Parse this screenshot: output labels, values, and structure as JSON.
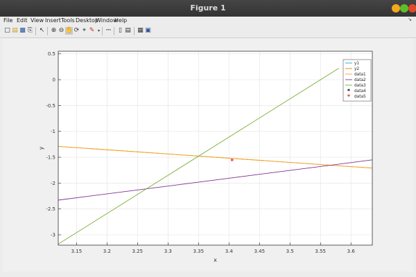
{
  "window": {
    "title": "Figure 1"
  },
  "menu": {
    "items": [
      {
        "label": "File"
      },
      {
        "label": "Edit"
      },
      {
        "label": "View"
      },
      {
        "label": "Insert"
      },
      {
        "label": "Tools"
      },
      {
        "label": "Desktop"
      },
      {
        "label": "Window"
      },
      {
        "label": "Help"
      }
    ]
  },
  "toolbar": {
    "buttons": [
      "new-figure",
      "open-file",
      "save",
      "print",
      "edit-plot",
      "zoom-in",
      "zoom-out",
      "pan",
      "rotate-3d",
      "data-cursor",
      "brush",
      "link-plot",
      "insert-colorbar",
      "insert-legend",
      "hide-plot-tools",
      "show-plot-tools"
    ]
  },
  "chart_data": {
    "type": "line",
    "xlabel": "x",
    "ylabel": "y",
    "xlim": [
      3.12,
      3.635
    ],
    "ylim": [
      -3.2,
      0.55
    ],
    "xticks": [
      "3.15",
      "3.2",
      "3.25",
      "3.3",
      "3.35",
      "3.4",
      "3.45",
      "3.5",
      "3.55",
      "3.6"
    ],
    "xtick_values": [
      3.15,
      3.2,
      3.25,
      3.3,
      3.35,
      3.4,
      3.45,
      3.5,
      3.55,
      3.6
    ],
    "yticks": [
      "0.5",
      "0",
      "-0.5",
      "-1",
      "-1.5",
      "-2",
      "-2.5",
      "-3"
    ],
    "ytick_values": [
      0.5,
      0,
      -0.5,
      -1,
      -1.5,
      -2,
      -2.5,
      -3
    ],
    "grid": true,
    "legend_position": "top-right",
    "series": [
      {
        "name": "y1",
        "color": "#1fa2d6",
        "kind": "line",
        "x": [],
        "y": []
      },
      {
        "name": "y2",
        "color": "#e87c00",
        "kind": "line",
        "x": [
          3.12,
          3.635
        ],
        "y": [
          -1.29,
          -1.71
        ]
      },
      {
        "name": "data1",
        "color": "#f1a52b",
        "kind": "line",
        "x": [
          3.12,
          3.635
        ],
        "y": [
          -1.29,
          -1.71
        ]
      },
      {
        "name": "data2",
        "color": "#7e2f8e",
        "kind": "line",
        "x": [
          3.12,
          3.635
        ],
        "y": [
          -2.33,
          -1.55
        ]
      },
      {
        "name": "data3",
        "color": "#77ac30",
        "kind": "line",
        "x": [
          3.12,
          3.58
        ],
        "y": [
          -3.18,
          0.22
        ]
      },
      {
        "name": "data4",
        "color": "#000000",
        "kind": "marker",
        "marker": "*",
        "x": [],
        "y": []
      },
      {
        "name": "data5",
        "color": "#e0202a",
        "kind": "marker",
        "marker": "*",
        "x": [
          3.405
        ],
        "y": [
          -1.57
        ]
      }
    ]
  }
}
